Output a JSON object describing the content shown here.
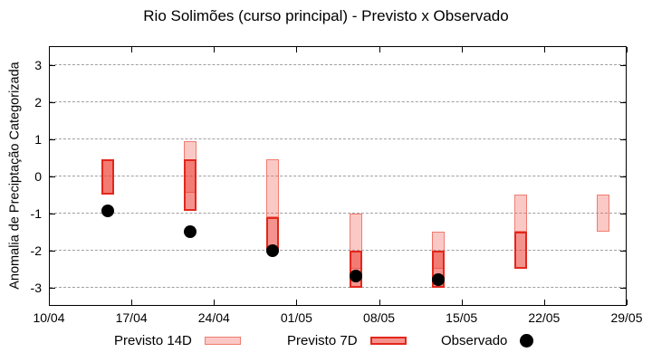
{
  "title": "Rio Solimões (curso principal) - Previsto x Observado",
  "y_axis": {
    "label": "Anomalia de Preciptação Categorizada",
    "ticks": [
      3,
      2,
      1,
      0,
      -1,
      -2,
      -3
    ],
    "range": [
      -3.5,
      3.5
    ]
  },
  "x_axis": {
    "ticks": [
      "10/04",
      "17/04",
      "24/04",
      "01/05",
      "08/05",
      "15/05",
      "22/05",
      "29/05"
    ]
  },
  "legend": [
    {
      "label": "Previsto 14D",
      "swatch": "light-pink-box"
    },
    {
      "label": "Previsto 7D",
      "swatch": "red-box"
    },
    {
      "label": "Observado",
      "swatch": "black-dot"
    }
  ],
  "colors": {
    "forecast_14d_fill": "rgba(240,100,90,0.35)",
    "forecast_14d_fill_hex": "#f9c9c3",
    "forecast_14d_border": "rgba(237,110,96,0.85)",
    "forecast_7d_fill": "rgba(235,58,48,0.55)",
    "forecast_7d_fill_hex": "#f4948e",
    "forecast_7d_border": "#e3271b",
    "overlap_fill_hex": "#f17b74",
    "observed_dot": "#000000",
    "gridline": "#a0a0a0",
    "axis": "#000000"
  },
  "chart_data": {
    "type": "candlestick-forecast-vs-observed",
    "title": "Rio Solimões (curso principal) - Previsto x Observado",
    "ylabel": "Anomalia de Preciptação Categorizada",
    "ylim": [
      -3.5,
      3.5
    ],
    "grid": "horizontal-dashed",
    "legend_position": "below-plot",
    "x_tick_labels": [
      "10/04",
      "17/04",
      "24/04",
      "01/05",
      "08/05",
      "15/05",
      "22/05",
      "29/05"
    ],
    "x_tick_days": [
      0,
      7,
      14,
      21,
      28,
      35,
      42,
      49
    ],
    "x_range_days": 49,
    "points": [
      {
        "date": "15/04",
        "day": 5,
        "previsto_14d": [
          0.45,
          -0.5
        ],
        "previsto_7d": [
          0.45,
          -0.5
        ],
        "observado": -0.95
      },
      {
        "date": "22/04",
        "day": 12,
        "previsto_14d": [
          0.95,
          -0.45
        ],
        "previsto_7d": [
          0.45,
          -0.95
        ],
        "observado": -1.5
      },
      {
        "date": "29/04",
        "day": 19,
        "previsto_14d": [
          0.45,
          -1.1
        ],
        "previsto_7d": [
          -1.1,
          -2.0
        ],
        "observado": -2.0
      },
      {
        "date": "06/05",
        "day": 26,
        "previsto_14d": [
          -1.0,
          -2.5
        ],
        "previsto_7d": [
          -2.0,
          -3.0
        ],
        "observado": -2.7
      },
      {
        "date": "13/05",
        "day": 33,
        "previsto_14d": [
          -1.5,
          -2.5
        ],
        "previsto_7d": [
          -2.0,
          -3.0
        ],
        "observado": -2.8
      },
      {
        "date": "20/05",
        "day": 40,
        "previsto_14d": [
          -0.5,
          -1.5
        ],
        "previsto_7d": [
          -1.5,
          -2.5
        ],
        "observado": null
      },
      {
        "date": "27/05",
        "day": 47,
        "previsto_14d": [
          -0.5,
          -1.5
        ],
        "previsto_7d": null,
        "observado": null
      }
    ]
  }
}
